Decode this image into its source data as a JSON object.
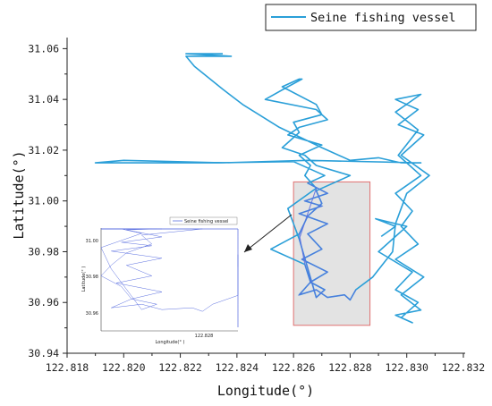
{
  "chart_data": {
    "type": "line",
    "title": "",
    "xlabel": "Longitude(°)",
    "ylabel": "Latitude(°)",
    "xlim": [
      122.818,
      122.832
    ],
    "ylim": [
      30.94,
      31.07
    ],
    "x_ticks": [
      "122.818",
      "122.820",
      "122.822",
      "122.824",
      "122.826",
      "122.828",
      "122.830",
      "122.832"
    ],
    "y_ticks": [
      "30.94",
      "30.96",
      "30.98",
      "31.00",
      "31.02",
      "31.04",
      "31.06"
    ],
    "legend": "top-right",
    "grid": false,
    "colors": {
      "track": "#2a9fd8",
      "track_dark": "#5b6fe0",
      "highlight_fill": "#d9d9d9",
      "highlight_stroke": "#e07070"
    },
    "series": [
      {
        "name": "Seine fishing vessel",
        "x": [
          122.8235,
          122.8222,
          122.8238,
          122.8222,
          122.8225,
          122.8235,
          122.8242,
          122.8255,
          122.827,
          122.828,
          122.829,
          122.8298,
          122.8305,
          122.8265,
          122.8235,
          122.82,
          122.819,
          122.823,
          122.826,
          122.8271,
          122.8265,
          122.8272,
          122.8264,
          122.827,
          122.8262,
          122.8272,
          122.8265,
          122.827,
          122.8263,
          122.8272,
          122.8266,
          122.8271,
          122.8268,
          122.8262,
          122.8258,
          122.8268,
          122.8264,
          122.8266,
          122.8262,
          122.827,
          122.8258,
          122.8262,
          122.8272,
          122.8268,
          122.825,
          122.8258,
          122.8263,
          122.8262,
          122.8256,
          122.8268,
          122.827,
          122.826,
          122.8262,
          122.8256,
          122.8264,
          122.8268,
          122.828,
          122.8268,
          122.827,
          122.8265,
          122.8262,
          122.8252,
          122.8264,
          122.8266,
          122.8262,
          122.8268,
          122.8272,
          122.8278,
          122.828,
          122.8282,
          122.8288,
          122.8295,
          122.8296,
          122.83,
          122.8308,
          122.8298,
          122.8306,
          122.8297,
          122.8304,
          122.8296,
          122.8305,
          122.8296,
          122.8304,
          122.8297,
          122.8305,
          122.8296,
          122.8302,
          122.8298,
          122.8304,
          122.8296,
          122.8306,
          122.8298,
          122.8305,
          122.8296,
          122.8302,
          122.8298,
          122.8304,
          122.8296,
          122.8302,
          122.829,
          122.83,
          122.8289,
          122.8296,
          122.8291
        ],
        "y": [
          31.058,
          31.058,
          31.057,
          31.057,
          31.053,
          31.044,
          31.038,
          31.029,
          31.021,
          31.016,
          31.017,
          31.015,
          31.015,
          31.016,
          31.015,
          31.016,
          31.015,
          31.015,
          31.0155,
          31.01,
          31.007,
          31.003,
          31.0,
          30.998,
          30.995,
          30.991,
          30.987,
          30.981,
          30.977,
          30.972,
          30.968,
          30.965,
          30.962,
          30.985,
          30.997,
          31.005,
          31.01,
          31.014,
          31.018,
          31.022,
          31.026,
          31.029,
          31.032,
          31.036,
          31.04,
          31.045,
          31.048,
          31.048,
          31.045,
          31.038,
          31.034,
          31.031,
          31.027,
          31.021,
          31.018,
          31.014,
          31.01,
          31.004,
          30.999,
          30.994,
          30.987,
          30.981,
          30.975,
          30.968,
          30.963,
          30.965,
          30.962,
          30.963,
          30.961,
          30.965,
          30.97,
          30.98,
          30.991,
          31.003,
          31.01,
          31.018,
          31.026,
          31.03,
          31.036,
          31.04,
          31.042,
          31.035,
          31.028,
          31.018,
          31.01,
          31.003,
          30.996,
          30.99,
          30.983,
          30.977,
          30.97,
          30.963,
          30.957,
          30.955,
          30.952,
          30.954,
          30.96,
          30.965,
          30.972,
          30.98,
          30.99,
          30.993,
          30.99,
          30.986
        ]
      }
    ],
    "highlight_box": {
      "x": [
        122.826,
        122.8287
      ],
      "y": [
        30.951,
        31.0075
      ]
    },
    "inset": {
      "legend": "Seine fishing vessel",
      "xlabel": "Longitude(° )",
      "ylabel": "Latitude(° )",
      "x_ticks": [
        "122.828"
      ],
      "y_ticks": [
        "30.96",
        "30.98",
        "31.00"
      ]
    }
  }
}
